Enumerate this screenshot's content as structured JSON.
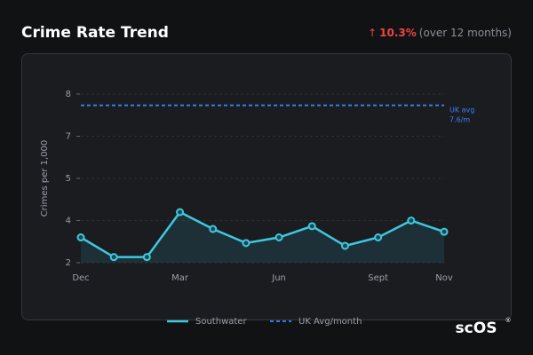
{
  "header": {
    "title": "Crime Rate Trend",
    "arrow": "↑",
    "change": "10.3%",
    "note": "(over 12 months)"
  },
  "chart_data": {
    "type": "line",
    "y_label": "Crimes per 1,000",
    "categories": [
      "Dec",
      null,
      null,
      "Mar",
      null,
      null,
      "Jun",
      null,
      null,
      "Sept",
      null,
      "Nov"
    ],
    "series": [
      {
        "name": "Southwater",
        "color": "#3ec8e0",
        "values": [
          2.9,
          2.2,
          2.2,
          3.8,
          3.2,
          2.7,
          2.9,
          3.3,
          2.6,
          2.9,
          3.5,
          3.1
        ]
      },
      {
        "name": "UK Avg/month",
        "color": "#3b82f6",
        "dashed": true,
        "values": [
          7.6,
          7.6,
          7.6,
          7.6,
          7.6,
          7.6,
          7.6,
          7.6,
          7.6,
          7.6,
          7.6,
          7.6
        ]
      }
    ],
    "annotation": [
      "UK avg",
      "7.6/m"
    ],
    "ylim": [
      2,
      8
    ],
    "yticks": [
      2,
      {
        "value": 3.5,
        "label": "4"
      },
      5,
      {
        "value": 6.5,
        "label": "7"
      },
      8
    ],
    "grid": true
  },
  "logo": {
    "text": "scOS",
    "mark": "®"
  }
}
